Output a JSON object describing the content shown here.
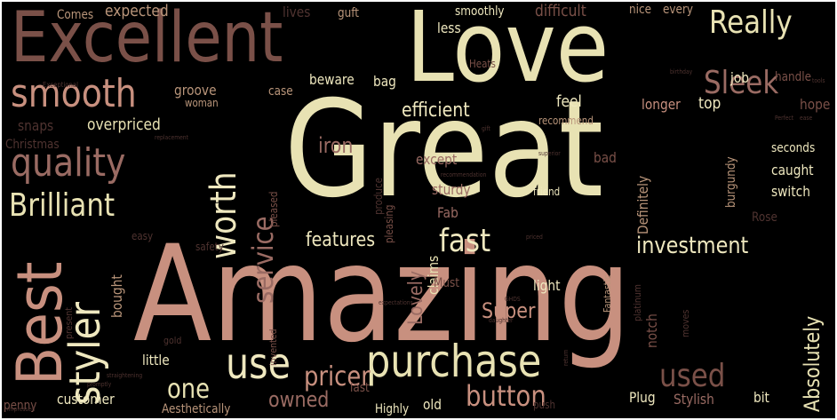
{
  "palette": {
    "background": "#000000",
    "cream": "#e8e2b3",
    "pale": "#efe8bf",
    "rose": "#c8907f",
    "salmon": "#d39b88",
    "mauve": "#9a6b63",
    "brown": "#7a5048",
    "dark": "#4f3330",
    "deep": "#3a2624",
    "tan": "#b9957a"
  },
  "words": [
    {
      "text": "Great",
      "color": "salmon_cream"
    },
    {
      "text": "Amazing",
      "color": "rose"
    },
    {
      "text": "Love",
      "color": "cream"
    },
    {
      "text": "Excellent",
      "color": "brown"
    },
    {
      "text": "Best",
      "color": "rose"
    },
    {
      "text": "purchase",
      "color": "cream"
    },
    {
      "text": "smooth",
      "color": "rose"
    },
    {
      "text": "quality",
      "color": "mauve"
    },
    {
      "text": "Brilliant",
      "color": "cream"
    },
    {
      "text": "styler",
      "color": "pale"
    },
    {
      "text": "worth",
      "color": "pale"
    },
    {
      "text": "service",
      "color": "mauve"
    },
    {
      "text": "Really",
      "color": "cream"
    },
    {
      "text": "Sleek",
      "color": "mauve"
    },
    {
      "text": "fast",
      "color": "pale"
    },
    {
      "text": "investment",
      "color": "pale"
    },
    {
      "text": "use",
      "color": "pale"
    },
    {
      "text": "features",
      "color": "pale"
    },
    {
      "text": "efficient",
      "color": "pale"
    },
    {
      "text": "button",
      "color": "rose"
    },
    {
      "text": "used",
      "color": "brown"
    },
    {
      "text": "one",
      "color": "cream"
    },
    {
      "text": "pricer",
      "color": "rose"
    },
    {
      "text": "owned",
      "color": "mauve"
    },
    {
      "text": "Absolutely",
      "color": "cream"
    },
    {
      "text": "Lovely",
      "color": "mauve"
    },
    {
      "text": "Super",
      "color": "rose"
    },
    {
      "text": "iron",
      "color": "mauve"
    },
    {
      "text": "expected",
      "color": "tan"
    },
    {
      "text": "difficult",
      "color": "brown"
    },
    {
      "text": "nice",
      "color": "tan"
    },
    {
      "text": "every",
      "color": "tan"
    },
    {
      "text": "groove",
      "color": "tan"
    },
    {
      "text": "overpriced",
      "color": "cream"
    },
    {
      "text": "feel",
      "color": "pale"
    },
    {
      "text": "longer",
      "color": "rose"
    },
    {
      "text": "top",
      "color": "pale"
    },
    {
      "text": "hope",
      "color": "brown"
    },
    {
      "text": "job",
      "color": "pale"
    },
    {
      "text": "beware",
      "color": "pale"
    },
    {
      "text": "bag",
      "color": "pale"
    },
    {
      "text": "except",
      "color": "mauve"
    },
    {
      "text": "bad",
      "color": "brown"
    },
    {
      "text": "sturdy",
      "color": "mauve"
    },
    {
      "text": "Fab",
      "color": "mauve"
    },
    {
      "text": "caught",
      "color": "pale"
    },
    {
      "text": "switch",
      "color": "pale"
    },
    {
      "text": "Definitely",
      "color": "tan"
    },
    {
      "text": "Rose",
      "color": "dark"
    },
    {
      "text": "burgundy",
      "color": "tan"
    },
    {
      "text": "Fantastic",
      "color": "tan"
    },
    {
      "text": "platinum",
      "color": "dark"
    },
    {
      "text": "notch",
      "color": "brown"
    },
    {
      "text": "light",
      "color": "pale"
    },
    {
      "text": "claims",
      "color": "cream"
    },
    {
      "text": "Must",
      "color": "brown"
    },
    {
      "text": "bought",
      "color": "tan"
    },
    {
      "text": "little",
      "color": "pale"
    },
    {
      "text": "customer",
      "color": "pale"
    },
    {
      "text": "old",
      "color": "pale"
    },
    {
      "text": "Highly",
      "color": "pale"
    },
    {
      "text": "Aesthetically",
      "color": "tan"
    },
    {
      "text": "Plug",
      "color": "pale"
    },
    {
      "text": "Stylish",
      "color": "mauve"
    },
    {
      "text": "bit",
      "color": "pale"
    },
    {
      "text": "last",
      "color": "brown"
    },
    {
      "text": "lives",
      "color": "dark"
    },
    {
      "text": "guft",
      "color": "tan"
    },
    {
      "text": "smoothly",
      "color": "pale"
    },
    {
      "text": "less",
      "color": "pale"
    },
    {
      "text": "Heats",
      "color": "brown"
    },
    {
      "text": "handle",
      "color": "brown"
    },
    {
      "text": "Comes",
      "color": "tan"
    },
    {
      "text": "case",
      "color": "tan"
    },
    {
      "text": "woman",
      "color": "tan"
    },
    {
      "text": "snaps",
      "color": "dark"
    },
    {
      "text": "Christmas",
      "color": "dark"
    },
    {
      "text": "recommend",
      "color": "tan"
    },
    {
      "text": "seconds",
      "color": "pale"
    },
    {
      "text": "friend",
      "color": "pale"
    },
    {
      "text": "pleasing",
      "color": "brown"
    },
    {
      "text": "produce",
      "color": "dark"
    },
    {
      "text": "pleased",
      "color": "brown"
    },
    {
      "text": "easy",
      "color": "dark"
    },
    {
      "text": "safety",
      "color": "dark"
    },
    {
      "text": "present",
      "color": "dark"
    },
    {
      "text": "penny",
      "color": "brown"
    },
    {
      "text": "gold",
      "color": "dark"
    },
    {
      "text": "invented",
      "color": "brown"
    },
    {
      "text": "push",
      "color": "dark"
    },
    {
      "text": "moves",
      "color": "dark"
    },
    {
      "text": "Exceptional",
      "color": "dark"
    },
    {
      "text": "birthday",
      "color": "dark"
    },
    {
      "text": "Perfect",
      "color": "dark"
    },
    {
      "text": "replacement",
      "color": "dark"
    },
    {
      "text": "superior",
      "color": "dark"
    },
    {
      "text": "gift",
      "color": "dark"
    },
    {
      "text": "recommendation",
      "color": "dark"
    },
    {
      "text": "priced",
      "color": "dark"
    },
    {
      "text": "expectations",
      "color": "dark"
    },
    {
      "text": "daughter",
      "color": "dark"
    },
    {
      "text": "straightening",
      "color": "dark"
    },
    {
      "text": "impressed",
      "color": "dark"
    },
    {
      "text": "promptly",
      "color": "dark"
    },
    {
      "text": "tools",
      "color": "dark"
    },
    {
      "text": "ease",
      "color": "dark"
    },
    {
      "text": "return",
      "color": "dark"
    },
    {
      "text": "GHDS",
      "color": "dark"
    }
  ]
}
